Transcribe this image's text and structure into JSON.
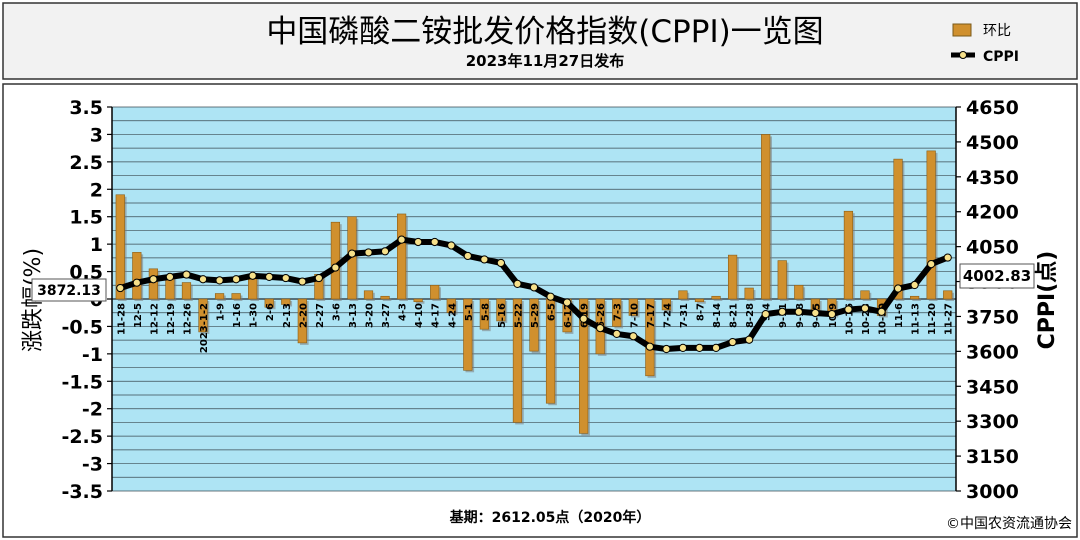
{
  "header": {
    "title": "中国磷酸二铵批发价格指数(CPPI)一览图",
    "date": "2023年11月27日发布"
  },
  "footer": {
    "base_note": "基期：2612.05点（2020年）",
    "copyright": "©中国农资流通协会"
  },
  "colors": {
    "bar": "#d0902e",
    "plot_bg": "#aee4f4",
    "line": "#000000",
    "marker": "#f6e08a"
  },
  "chart_data": {
    "type": "bar",
    "categories": [
      "11-28",
      "12-5",
      "12-12",
      "12-19",
      "12-26",
      "2023-1-2",
      "1-9",
      "1-16",
      "1-30",
      "2-6",
      "2-13",
      "2-20",
      "2-27",
      "3-6",
      "3-13",
      "3-20",
      "3-27",
      "4-3",
      "4-10",
      "4-17",
      "4-24",
      "5-1",
      "5-8",
      "5-16",
      "5-22",
      "5-29",
      "6-5",
      "6-12",
      "6-19",
      "6-26",
      "7-3",
      "7-10",
      "7-17",
      "7-24",
      "7-31",
      "8-7",
      "8-14",
      "8-21",
      "8-28",
      "9-4",
      "9-11",
      "9-18",
      "9-25",
      "10-9",
      "10-16",
      "10-23",
      "10-30",
      "11-6",
      "11-13",
      "11-20",
      "11-27"
    ],
    "series": [
      {
        "name": "环比",
        "axis": "left",
        "values": [
          1.9,
          0.85,
          0.55,
          0.4,
          0.3,
          -0.6,
          0.1,
          0.1,
          0.45,
          -0.15,
          -0.1,
          -0.8,
          0.45,
          1.4,
          1.5,
          0.15,
          0.05,
          1.55,
          -0.05,
          0.25,
          -0.25,
          -1.3,
          -0.55,
          -0.4,
          -2.25,
          -0.95,
          -1.9,
          -0.6,
          -2.45,
          -1.0,
          -0.5,
          -0.3,
          -1.4,
          -0.2,
          0.15,
          -0.05,
          0.05,
          0.8,
          0.2,
          3.0,
          0.7,
          0.25,
          -0.2,
          -0.3,
          1.6,
          0.15,
          -0.3,
          2.55,
          0.05,
          2.7,
          0.15
        ]
      },
      {
        "name": "CPPI",
        "axis": "right",
        "type": "line",
        "values": [
          3872,
          3895,
          3910,
          3920,
          3930,
          3910,
          3905,
          3910,
          3925,
          3920,
          3915,
          3900,
          3915,
          3960,
          4020,
          4025,
          4030,
          4080,
          4070,
          4070,
          4055,
          4010,
          3995,
          3980,
          3890,
          3875,
          3835,
          3810,
          3740,
          3700,
          3675,
          3665,
          3620,
          3610,
          3615,
          3615,
          3615,
          3640,
          3650,
          3760,
          3770,
          3770,
          3765,
          3760,
          3780,
          3785,
          3770,
          3870,
          3885,
          3975,
          4003
        ]
      }
    ],
    "left_axis": {
      "label": "涨跌幅(%)",
      "range": [
        -3.5,
        3.5
      ],
      "ticks": [
        "-3.5",
        "-3",
        "-2.5",
        "-2",
        "-1.5",
        "-1",
        "-0.5",
        "0",
        "0.5",
        "1",
        "1.5",
        "2",
        "2.5",
        "3",
        "3.5"
      ]
    },
    "right_axis": {
      "label": "CPPI(点)",
      "range": [
        3000,
        4650
      ],
      "ticks": [
        "3000",
        "3150",
        "3300",
        "3450",
        "3600",
        "3750",
        "3900",
        "4050",
        "4200",
        "4350",
        "4500",
        "4650"
      ]
    },
    "annotations": {
      "start_value": "3872.13",
      "end_value": "4002.83"
    },
    "legend": {
      "placement": "top-right"
    },
    "grid": true
  }
}
